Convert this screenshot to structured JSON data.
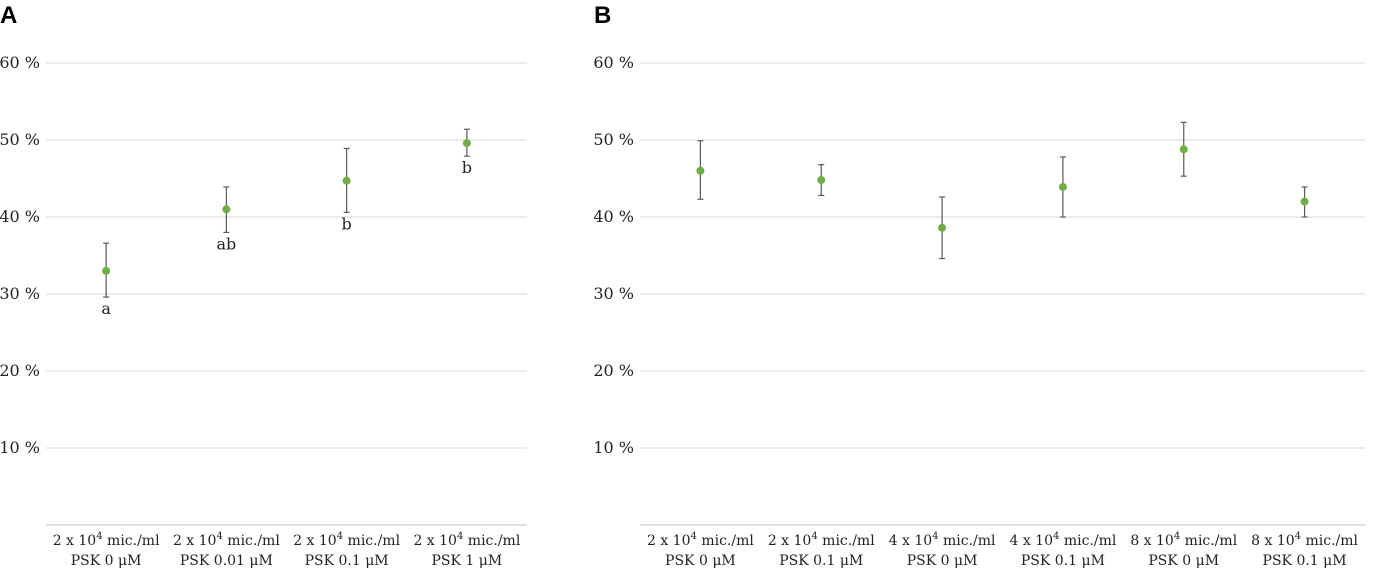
{
  "colors": {
    "point": "#70ad47",
    "errorbar": "#595959",
    "grid": "#d9d9d9"
  },
  "chart_data": [
    {
      "panel": "A",
      "type": "scatter",
      "ylim": [
        0,
        60
      ],
      "yticks": [
        10,
        20,
        30,
        40,
        50,
        60
      ],
      "ytick_labels": [
        "10 %",
        "20 %",
        "30 %",
        "40 %",
        "50 %",
        "60 %"
      ],
      "categories": [
        {
          "line1_pre": "2 x 10",
          "line1_sup": "4",
          "line1_post": " mic./ml",
          "line2": "PSK 0 μM"
        },
        {
          "line1_pre": "2 x 10",
          "line1_sup": "4",
          "line1_post": " mic./ml",
          "line2": "PSK 0.01 μM"
        },
        {
          "line1_pre": "2 x 10",
          "line1_sup": "4",
          "line1_post": " mic./ml",
          "line2": "PSK 0.1 μM"
        },
        {
          "line1_pre": "2 x 10",
          "line1_sup": "4",
          "line1_post": " mic./ml",
          "line2": "PSK 1 μM"
        }
      ],
      "values": [
        33.0,
        41.0,
        44.7,
        49.6
      ],
      "err_low": [
        29.6,
        38.0,
        40.6,
        47.9
      ],
      "err_high": [
        36.6,
        43.9,
        48.9,
        51.4
      ],
      "annotations": [
        "a",
        "ab",
        "b",
        "b"
      ]
    },
    {
      "panel": "B",
      "type": "scatter",
      "ylim": [
        0,
        60
      ],
      "yticks": [
        10,
        20,
        30,
        40,
        50,
        60
      ],
      "ytick_labels": [
        "10 %",
        "20 %",
        "30 %",
        "40 %",
        "50 %",
        "60 %"
      ],
      "categories": [
        {
          "line1_pre": "2 x 10",
          "line1_sup": "4",
          "line1_post": " mic./ml",
          "line2": "PSK 0 μM"
        },
        {
          "line1_pre": "2 x 10",
          "line1_sup": "4",
          "line1_post": " mic./ml",
          "line2": "PSK 0.1 μM"
        },
        {
          "line1_pre": "4 x 10",
          "line1_sup": "4",
          "line1_post": " mic./ml",
          "line2": "PSK 0 μM"
        },
        {
          "line1_pre": "4 x 10",
          "line1_sup": "4",
          "line1_post": " mic./ml",
          "line2": "PSK 0.1 μM"
        },
        {
          "line1_pre": "8 x 10",
          "line1_sup": "4",
          "line1_post": " mic./ml",
          "line2": "PSK 0 μM"
        },
        {
          "line1_pre": "8 x 10",
          "line1_sup": "4",
          "line1_post": " mic./ml",
          "line2": "PSK 0.1 μM"
        }
      ],
      "values": [
        46.0,
        44.8,
        38.6,
        43.9,
        48.8,
        42.0
      ],
      "err_low": [
        42.3,
        42.8,
        34.6,
        40.0,
        45.3,
        40.0
      ],
      "err_high": [
        49.9,
        46.8,
        42.6,
        47.8,
        52.3,
        43.9
      ],
      "annotations": [
        "",
        "",
        "",
        "",
        "",
        ""
      ]
    }
  ]
}
